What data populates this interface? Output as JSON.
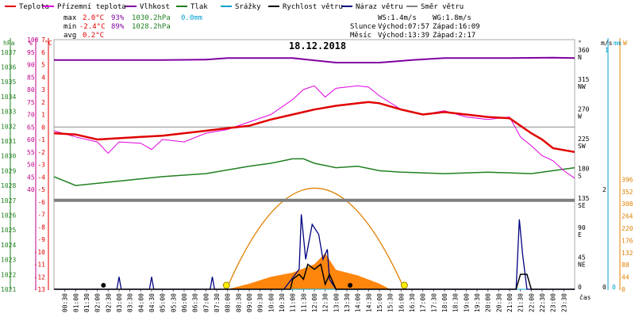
{
  "chart_data": {
    "type": "line",
    "title": "18.12.2018",
    "legend": [
      {
        "label": "Teplota",
        "color": "#e00000"
      },
      {
        "label": "Přízemní teplota",
        "color": "#e000e0"
      },
      {
        "label": "Vlhkost",
        "color": "#8000a0"
      },
      {
        "label": "Tlak",
        "color": "#208020"
      },
      {
        "label": "Srážky",
        "color": "#00a0d0"
      },
      {
        "label": "Rychlost větru",
        "color": "#000000"
      },
      {
        "label": "Náraz větru",
        "color": "#000080"
      },
      {
        "label": "Směr větru",
        "color": "#808080"
      }
    ],
    "stats": {
      "max_label": "max",
      "max_temp": "2.0°C",
      "max_hum": "93%",
      "max_press": "1030.2hPa",
      "rain": "0.0mm",
      "min_label": "min",
      "min_temp": "-2.4°C",
      "min_hum": "89%",
      "min_press": "1028.2hPa",
      "avg_label": "avg",
      "avg_temp": "0.2°C",
      "ws": "WS:1.4m/s",
      "wg": "WG:1.8m/s",
      "sun_label": "Slunce",
      "sunrise": "Východ:07:57",
      "sunset": "Západ:16:09",
      "moon_label": "Měsíc",
      "moonrise": "Východ:13:39",
      "moonset": "Západ:2:17"
    },
    "axes": {
      "hpa_label": "hPa",
      "pct_label": "%",
      "temp_label": "°C",
      "hpa_ticks": [
        "1037",
        "1036",
        "1035",
        "1034",
        "1033",
        "1032",
        "1031",
        "1030",
        "1029",
        "1028",
        "1027",
        "1026",
        "1025",
        "1024",
        "1023",
        "1022",
        "1021"
      ],
      "pct_ticks": [
        "100",
        "95",
        "90",
        "85",
        "80",
        "75",
        "70",
        "65",
        "60",
        "55",
        "50",
        "45",
        "40"
      ],
      "temp_ticks": [
        "7",
        "6",
        "5",
        "4",
        "3",
        "2",
        "1",
        "0",
        "-1",
        "-2",
        "-3",
        "-4",
        "-5",
        "-6",
        "-7",
        "-8",
        "-9",
        "-10",
        "-11",
        "-12",
        "-13"
      ],
      "dir_label": "°",
      "dir_ticks": [
        {
          "deg": "360",
          "name": "N"
        },
        {
          "deg": "315",
          "name": "NW"
        },
        {
          "deg": "270",
          "name": "W"
        },
        {
          "deg": "225",
          "name": "SW"
        },
        {
          "deg": "180",
          "name": "S"
        },
        {
          "deg": "135",
          "name": "SE"
        },
        {
          "deg": "90",
          "name": "E"
        },
        {
          "deg": "45",
          "name": "NE"
        },
        {
          "deg": "0",
          "name": ""
        }
      ],
      "ms_label": "m/s",
      "mm_label": "mm",
      "w_label": "W",
      "ms_top": "2",
      "ms_bottom": "0",
      "mm_top": "1",
      "mm_bottom": "0",
      "w_ticks": [
        "396",
        "352",
        "308",
        "264",
        "220",
        "176",
        "132",
        "88",
        "44",
        "0"
      ],
      "time_label": "čas",
      "x_ticks": [
        "00:30",
        "01:00",
        "01:30",
        "02:00",
        "02:30",
        "03:00",
        "03:30",
        "04:00",
        "04:30",
        "05:00",
        "05:30",
        "06:00",
        "06:30",
        "07:00",
        "07:30",
        "08:00",
        "08:30",
        "09:00",
        "09:30",
        "10:00",
        "10:30",
        "11:00",
        "11:30",
        "12:00",
        "12:30",
        "13:00",
        "13:30",
        "14:00",
        "14:30",
        "15:00",
        "15:30",
        "16:00",
        "16:30",
        "17:00",
        "17:30",
        "18:00",
        "18:30",
        "19:00",
        "19:30",
        "20:00",
        "20:30",
        "21:00",
        "21:30",
        "22:00",
        "22:30",
        "23:00",
        "23:30"
      ]
    },
    "x_range_hours": [
      0,
      24
    ],
    "temp_range": [
      -13,
      7
    ],
    "series": [
      {
        "name": "Teplota",
        "unit": "°C",
        "color": "#e00000",
        "points": [
          [
            0,
            -0.5
          ],
          [
            1,
            -0.6
          ],
          [
            2,
            -1.0
          ],
          [
            3,
            -0.9
          ],
          [
            4,
            -0.8
          ],
          [
            5,
            -0.7
          ],
          [
            6,
            -0.5
          ],
          [
            7,
            -0.3
          ],
          [
            8,
            -0.1
          ],
          [
            9,
            0.1
          ],
          [
            10,
            0.6
          ],
          [
            11,
            1.0
          ],
          [
            12,
            1.4
          ],
          [
            13,
            1.7
          ],
          [
            14,
            1.9
          ],
          [
            14.5,
            2.0
          ],
          [
            15,
            1.9
          ],
          [
            16,
            1.4
          ],
          [
            17,
            1.0
          ],
          [
            18,
            1.2
          ],
          [
            19,
            1.0
          ],
          [
            20,
            0.8
          ],
          [
            21,
            0.7
          ],
          [
            21.5,
            0.1
          ],
          [
            22,
            -0.5
          ],
          [
            22.5,
            -1.0
          ],
          [
            23,
            -1.7
          ],
          [
            24,
            -2.0
          ]
        ]
      },
      {
        "name": "Přízemní teplota",
        "unit": "°C",
        "color": "#e000e0",
        "points": [
          [
            0,
            -0.3
          ],
          [
            1,
            -0.8
          ],
          [
            2,
            -1.2
          ],
          [
            2.5,
            -2.1
          ],
          [
            3,
            -1.2
          ],
          [
            4,
            -1.3
          ],
          [
            4.5,
            -1.8
          ],
          [
            5,
            -1.0
          ],
          [
            6,
            -1.2
          ],
          [
            7,
            -0.5
          ],
          [
            8,
            -0.2
          ],
          [
            9,
            0.4
          ],
          [
            10,
            1.0
          ],
          [
            11,
            2.2
          ],
          [
            11.5,
            3.0
          ],
          [
            12,
            3.3
          ],
          [
            12.5,
            2.4
          ],
          [
            13,
            3.1
          ],
          [
            14,
            3.3
          ],
          [
            14.5,
            3.2
          ],
          [
            15,
            2.5
          ],
          [
            16,
            1.4
          ],
          [
            17,
            1.0
          ],
          [
            18,
            1.3
          ],
          [
            19,
            0.8
          ],
          [
            20,
            0.6
          ],
          [
            21,
            0.8
          ],
          [
            21.5,
            -0.8
          ],
          [
            22,
            -1.5
          ],
          [
            22.5,
            -2.3
          ],
          [
            23,
            -2.7
          ],
          [
            23.5,
            -3.5
          ],
          [
            24,
            -4.1
          ]
        ]
      },
      {
        "name": "Vlhkost",
        "unit": "%",
        "color": "#8000a0",
        "points": [
          [
            0,
            91.8
          ],
          [
            5,
            91.8
          ],
          [
            7,
            92.0
          ],
          [
            8,
            92.6
          ],
          [
            11,
            92.6
          ],
          [
            13,
            90.8
          ],
          [
            15,
            90.8
          ],
          [
            16.5,
            91.8
          ],
          [
            18,
            92.6
          ],
          [
            21,
            92.6
          ],
          [
            23,
            92.8
          ],
          [
            24,
            92.6
          ]
        ]
      },
      {
        "name": "Tlak",
        "unit": "hPa",
        "color": "#208020",
        "points": [
          [
            0,
            1028.6
          ],
          [
            1,
            1028.0
          ],
          [
            3,
            1028.3
          ],
          [
            5,
            1028.6
          ],
          [
            7,
            1028.8
          ],
          [
            9,
            1029.3
          ],
          [
            10,
            1029.5
          ],
          [
            11,
            1029.8
          ],
          [
            11.5,
            1029.8
          ],
          [
            12,
            1029.5
          ],
          [
            13,
            1029.2
          ],
          [
            14,
            1029.3
          ],
          [
            15,
            1029.0
          ],
          [
            16,
            1028.9
          ],
          [
            18,
            1028.8
          ],
          [
            20,
            1028.9
          ],
          [
            22,
            1028.8
          ],
          [
            23,
            1029.0
          ],
          [
            24,
            1029.2
          ]
        ]
      },
      {
        "name": "Srážky",
        "unit": "mm",
        "color": "#00a0d0",
        "points": [
          [
            0,
            0
          ],
          [
            24,
            0
          ]
        ]
      },
      {
        "name": "Rychlost větru",
        "unit": "m/s",
        "color": "#000000",
        "points": [
          [
            0,
            0
          ],
          [
            10.9,
            0
          ],
          [
            11,
            0.2
          ],
          [
            11.3,
            0.3
          ],
          [
            11.5,
            0.2
          ],
          [
            11.7,
            0.5
          ],
          [
            12,
            0.4
          ],
          [
            12.3,
            0.5
          ],
          [
            12.5,
            0.1
          ],
          [
            12.7,
            0.3
          ],
          [
            13,
            0
          ],
          [
            21.3,
            0
          ],
          [
            21.5,
            0.3
          ],
          [
            21.8,
            0.3
          ],
          [
            22,
            0
          ],
          [
            24,
            0
          ]
        ]
      },
      {
        "name": "Náraz větru",
        "unit": "m/s",
        "color": "#000080",
        "points": [
          [
            0,
            0
          ],
          [
            2.9,
            0
          ],
          [
            3,
            0.25
          ],
          [
            3.1,
            0
          ],
          [
            4.4,
            0
          ],
          [
            4.5,
            0.25
          ],
          [
            4.6,
            0
          ],
          [
            7.2,
            0
          ],
          [
            7.3,
            0.25
          ],
          [
            7.4,
            0
          ],
          [
            10.6,
            0
          ],
          [
            11.3,
            0.4
          ],
          [
            11.4,
            1.5
          ],
          [
            11.6,
            0.6
          ],
          [
            11.9,
            1.3
          ],
          [
            12.2,
            1.1
          ],
          [
            12.4,
            0.6
          ],
          [
            12.6,
            0.8
          ],
          [
            12.7,
            0.2
          ],
          [
            13,
            0
          ],
          [
            21.3,
            0
          ],
          [
            21.45,
            1.4
          ],
          [
            21.6,
            0.7
          ],
          [
            21.8,
            0
          ],
          [
            24,
            0
          ]
        ]
      },
      {
        "name": "Směr větru",
        "unit": "°",
        "color": "#808080",
        "points": [
          [
            0,
            135
          ],
          [
            24,
            135
          ]
        ]
      },
      {
        "name": "Sluneční záření",
        "unit": "W",
        "color": "#ff8000",
        "points": [
          [
            8,
            0
          ],
          [
            9,
            20
          ],
          [
            10,
            45
          ],
          [
            11,
            60
          ],
          [
            12,
            90
          ],
          [
            12.5,
            130
          ],
          [
            13,
            70
          ],
          [
            13.5,
            60
          ],
          [
            14,
            50
          ],
          [
            15,
            20
          ],
          [
            15.5,
            0
          ]
        ]
      },
      {
        "name": "Dráha slunce",
        "unit": "",
        "color": "#e08000",
        "points": [
          [
            7.95,
            0
          ],
          [
            12,
            1
          ],
          [
            16.15,
            0
          ]
        ]
      }
    ]
  }
}
